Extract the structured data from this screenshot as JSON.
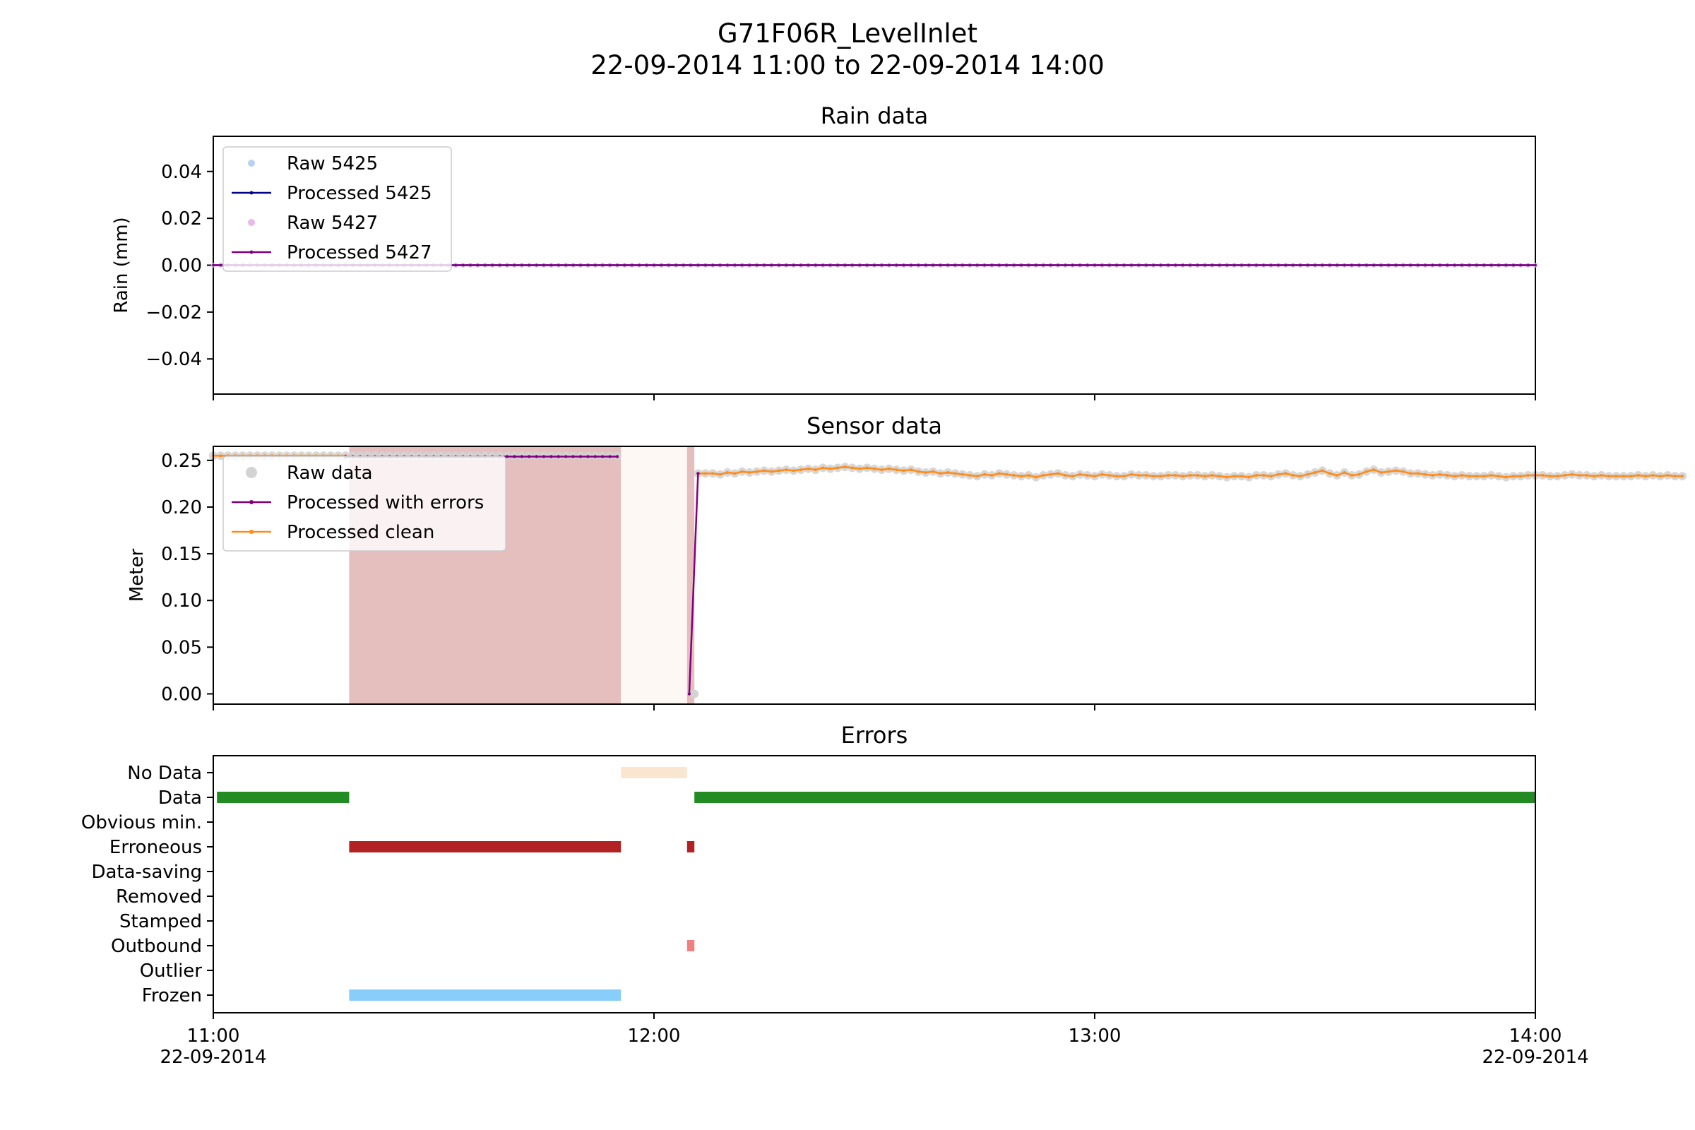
{
  "figure": {
    "title_line1": "G71F06R_LevelInlet",
    "title_line2": "22-09-2014 11:00 to 22-09-2014 14:00"
  },
  "x_axis": {
    "range_minutes": [
      0,
      180
    ],
    "ticks": [
      {
        "minute": 0,
        "time": "11:00",
        "date": "22-09-2014"
      },
      {
        "minute": 60,
        "time": "12:00",
        "date": ""
      },
      {
        "minute": 120,
        "time": "13:00",
        "date": ""
      },
      {
        "minute": 180,
        "time": "14:00",
        "date": "22-09-2014"
      }
    ]
  },
  "chart_data": [
    {
      "type": "line",
      "title": "Rain data",
      "ylabel": "Rain (mm)",
      "ylim": [
        -0.055,
        0.055
      ],
      "yticks": [
        -0.04,
        -0.02,
        0.0,
        0.02,
        0.04
      ],
      "ytick_labels": [
        "−0.04",
        "−0.02",
        "0.00",
        "0.02",
        "0.04"
      ],
      "legend_placement": "upper-left",
      "x_interval_minutes": 1,
      "x_range_minutes": [
        0,
        180
      ],
      "series": [
        {
          "name": "Raw 5425",
          "style": "markers",
          "color": "#a9c4ee",
          "constant_value": 0.0
        },
        {
          "name": "Processed 5425",
          "style": "line-dots",
          "color": "#00008b",
          "constant_value": 0.0
        },
        {
          "name": "Raw 5427",
          "style": "markers",
          "color": "#e2a8e2",
          "constant_value": 0.0
        },
        {
          "name": "Processed 5427",
          "style": "line-dots",
          "color": "#800080",
          "constant_value": 0.0
        }
      ]
    },
    {
      "type": "line",
      "title": "Sensor data",
      "ylabel": "Meter",
      "ylim": [
        -0.011,
        0.265
      ],
      "yticks": [
        0.0,
        0.05,
        0.1,
        0.15,
        0.2,
        0.25
      ],
      "ytick_labels": [
        "0.00",
        "0.05",
        "0.10",
        "0.15",
        "0.20",
        "0.25"
      ],
      "legend_placement": "upper-left",
      "shaded_regions": [
        {
          "start_minute": 18.5,
          "end_minute": 55.5,
          "color": "#e5bebe",
          "category": "Erroneous"
        },
        {
          "start_minute": 55.5,
          "end_minute": 64.5,
          "color": "#fdf8f3",
          "category": "No Data"
        },
        {
          "start_minute": 64.5,
          "end_minute": 65.5,
          "color": "#e5bebe",
          "category": "Erroneous"
        }
      ],
      "series": [
        {
          "name": "Raw data",
          "style": "markers",
          "color": "#d3d3d3",
          "x_interval_minutes": 1,
          "segments": [
            {
              "start_minute": 0,
              "end_minute": 55,
              "value": 0.255
            },
            {
              "start_minute": 66,
              "values": [
                0.236,
                0.236,
                0.236,
                0.235,
                0.237,
                0.236,
                0.238,
                0.237,
                0.238,
                0.239,
                0.238,
                0.239,
                0.24,
                0.239,
                0.24,
                0.241,
                0.24,
                0.242,
                0.241,
                0.242,
                0.243,
                0.242,
                0.241,
                0.242,
                0.241,
                0.24,
                0.241,
                0.24,
                0.239,
                0.24,
                0.238,
                0.237,
                0.238,
                0.236,
                0.237,
                0.236,
                0.235,
                0.234,
                0.233,
                0.235,
                0.234,
                0.236,
                0.235,
                0.234,
                0.233,
                0.234,
                0.232,
                0.234,
                0.235,
                0.236,
                0.234,
                0.233,
                0.235,
                0.234,
                0.233,
                0.235,
                0.234,
                0.233,
                0.233,
                0.235,
                0.234,
                0.234,
                0.233,
                0.233,
                0.234,
                0.234,
                0.233,
                0.234,
                0.234,
                0.233,
                0.234,
                0.233,
                0.232,
                0.233,
                0.233,
                0.232,
                0.234,
                0.234,
                0.233,
                0.235,
                0.236,
                0.234,
                0.233,
                0.235,
                0.237,
                0.239,
                0.236,
                0.234,
                0.237,
                0.234,
                0.235,
                0.238,
                0.24,
                0.237,
                0.238,
                0.239,
                0.238,
                0.236,
                0.236,
                0.235,
                0.234,
                0.235,
                0.234,
                0.233,
                0.234,
                0.233,
                0.233,
                0.233,
                0.234,
                0.233,
                0.232,
                0.233,
                0.233,
                0.234,
                0.234,
                0.234,
                0.233,
                0.233,
                0.234,
                0.235,
                0.234,
                0.234,
                0.233,
                0.234,
                0.233,
                0.233,
                0.233,
                0.233,
                0.234,
                0.233,
                0.234,
                0.233,
                0.234,
                0.233,
                0.233
              ]
            }
          ],
          "isolated_points": [
            {
              "minute": 65.5,
              "value": 0.0
            }
          ]
        },
        {
          "name": "Processed with errors",
          "style": "line-dots",
          "color": "#800080",
          "x_interval_minutes": 1,
          "segments": [
            {
              "start_minute": 18,
              "end_minute": 55,
              "value": 0.254
            },
            {
              "points": [
                {
                  "minute": 64.8,
                  "value": 0.0
                },
                {
                  "minute": 66,
                  "value": 0.236
                }
              ]
            }
          ]
        },
        {
          "name": "Processed clean",
          "style": "line-dots",
          "color": "#ff8c1a",
          "x_interval_minutes": 1,
          "segments": [
            {
              "start_minute": 0,
              "end_minute": 18,
              "value": 0.255
            },
            {
              "start_minute": 66,
              "same_as_raw": true
            }
          ]
        }
      ]
    },
    {
      "type": "timeline",
      "title": "Errors",
      "categories": [
        "No Data",
        "Data",
        "Obvious min.",
        "Erroneous",
        "Data-saving",
        "Removed",
        "Stamped",
        "Outbound",
        "Outlier",
        "Frozen"
      ],
      "bars": [
        {
          "category": "No Data",
          "start_minute": 55.5,
          "end_minute": 64.5,
          "color": "#fae5d1"
        },
        {
          "category": "Data",
          "start_minute": 0.5,
          "end_minute": 18.5,
          "color": "#228b22"
        },
        {
          "category": "Data",
          "start_minute": 65.5,
          "end_minute": 180,
          "color": "#228b22"
        },
        {
          "category": "Erroneous",
          "start_minute": 18.5,
          "end_minute": 55.5,
          "color": "#b22222"
        },
        {
          "category": "Erroneous",
          "start_minute": 64.5,
          "end_minute": 65.5,
          "color": "#b22222"
        },
        {
          "category": "Outbound",
          "start_minute": 64.5,
          "end_minute": 65.5,
          "color": "#f08080"
        },
        {
          "category": "Frozen",
          "start_minute": 18.5,
          "end_minute": 55.5,
          "color": "#87cefa"
        }
      ]
    }
  ]
}
